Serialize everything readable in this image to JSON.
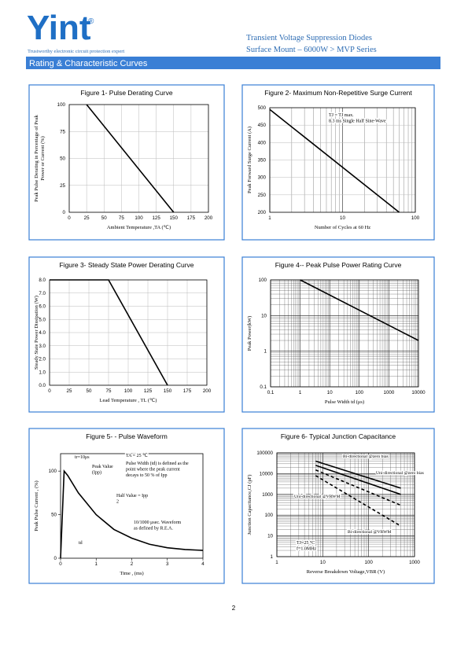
{
  "header": {
    "logo": "Yint",
    "registered": "®",
    "tagline": "Trustworthy electronic circuit protection expert",
    "title": "Transient Voltage Suppression Diodes",
    "subtitle": "Surface Mount – 6000W > MVP Series"
  },
  "section_title": "Rating & Characteristic Curves",
  "page_number": 2,
  "chart_data": [
    {
      "type": "line",
      "title": "Figure 1- Pulse Derating Curve",
      "x_label": "Ambient Temperature ,TA (℃)",
      "y_label": [
        "Peak Pulse Derating in Percentage of Peak",
        "Power or Current (%)"
      ],
      "x": [
        25,
        150
      ],
      "values": [
        100,
        0
      ],
      "color": "#000000",
      "xlim": [
        0,
        200
      ],
      "xticks": [
        0,
        25,
        50,
        75,
        100,
        125,
        150,
        175,
        200
      ],
      "ylim": [
        0,
        100
      ],
      "yticks": [
        0,
        25,
        50,
        75,
        100
      ],
      "grid": true
    },
    {
      "type": "line",
      "title": "Figure 2- Maximum Non-Repetitive Surge Current",
      "x_label": "Number of Cycles at 60 Hz",
      "y_label": [
        "Peak Forward Surge Current (A)"
      ],
      "annotations": [
        [
          "TJ = TJ max.",
          "8.3 ms Single Half Sine-Wave"
        ]
      ],
      "x": [
        1,
        60
      ],
      "values": [
        495,
        200
      ],
      "color": "#000000",
      "x_log": true,
      "xlim": [
        1,
        100
      ],
      "xticks": [
        1,
        10,
        100
      ],
      "ylim": [
        200,
        500
      ],
      "yticks": [
        200,
        250,
        300,
        350,
        400,
        450,
        500
      ],
      "grid": true
    },
    {
      "type": "line",
      "title": "Figure 3- Steady State Power Derating Curve",
      "x_label": "Lead Temperature , TL (℃)",
      "y_label": [
        "Steady State Power Dissipation (W)"
      ],
      "x": [
        0,
        75,
        150
      ],
      "values": [
        8,
        8,
        0
      ],
      "color": "#000000",
      "xlim": [
        0,
        200
      ],
      "xticks": [
        0,
        25,
        50,
        75,
        100,
        125,
        150,
        175,
        200
      ],
      "ylim": [
        0,
        8
      ],
      "yticks": [
        {
          "value": 0,
          "label": "0.0"
        },
        {
          "value": 1,
          "label": "1.0"
        },
        {
          "value": 2,
          "label": "2.0"
        },
        {
          "value": 3,
          "label": "3.0"
        },
        {
          "value": 4,
          "label": "4.0"
        },
        {
          "value": 5,
          "label": "5.0"
        },
        {
          "value": 6,
          "label": "6.0"
        },
        {
          "value": 7,
          "label": "7.0"
        },
        {
          "value": 8,
          "label": "8.0"
        }
      ],
      "grid": true
    },
    {
      "type": "line",
      "title": "Figure 4-- Peak Pulse Power Rating Curve",
      "x_label": "Pulse Width td (μs)",
      "y_label": [
        "Peak Power(kW)"
      ],
      "x": [
        1,
        10000
      ],
      "values": [
        100,
        2
      ],
      "color": "#000000",
      "x_log": true,
      "y_log": true,
      "xlim": [
        0.1,
        10000
      ],
      "xticks": [
        0.1,
        1,
        10,
        100,
        1000,
        10000
      ],
      "ylim": [
        0.1,
        100
      ],
      "yticks": [
        0.1,
        1,
        10,
        100
      ],
      "grid": true
    },
    {
      "type": "line",
      "title": "Figure 5- - Pulse Waveform",
      "x_label": "Time , (ms)",
      "y_label": [
        "Peak Pulse Current , (%)"
      ],
      "annotations": [
        [
          "tr=10μs"
        ],
        [
          "TA = 25 ℃"
        ],
        [
          "Pulse Width (td) is defined as the",
          "point where the peak current",
          "decays to 50 % of Ipp"
        ],
        [
          "Peak Value",
          "(Ipp)"
        ],
        [
          "Half Value = Ipp",
          "2"
        ],
        [
          "10/1000 μsec. Waveform",
          "as defined by R.E.A."
        ],
        [
          "td"
        ]
      ],
      "x": [
        0,
        0.1,
        0.2,
        0.5,
        1,
        1.5,
        2,
        2.5,
        3,
        3.5,
        4
      ],
      "values": [
        0,
        100,
        95,
        75,
        50,
        33,
        23,
        16,
        12,
        10,
        9
      ],
      "color": "#000000",
      "xlim": [
        0,
        4
      ],
      "xticks": [
        0,
        1,
        2,
        3,
        4
      ],
      "ylim": [
        0,
        120
      ],
      "yticks": [
        0,
        50,
        100
      ],
      "grid": false
    },
    {
      "type": "line",
      "title": "Figure 6- Typical Junction Capacitance",
      "x_label": "Reverse Breakdown Voltage,VBR (V)",
      "y_label": [
        "Junction Capacitance,CJ (pF)"
      ],
      "annotations": [
        [
          "TJ=25 °C",
          "f=1.0MHz"
        ]
      ],
      "x_log": true,
      "y_log": true,
      "series": [
        {
          "name": "Bi-directional @zero bias",
          "color": "#000000",
          "x": [
            7,
            500
          ],
          "values": [
            40000,
            2000
          ]
        },
        {
          "name": "Uni-directional @zero bias",
          "color": "#000000",
          "x": [
            7,
            500
          ],
          "values": [
            25000,
            1000
          ]
        },
        {
          "name": "Uni-directional @VRWM",
          "color": "#000000",
          "dashed": true,
          "x": [
            7,
            500
          ],
          "values": [
            15000,
            300
          ]
        },
        {
          "name": "Bi-directional @VRWM",
          "color": "#000000",
          "dashed": true,
          "x": [
            7,
            500
          ],
          "values": [
            8000,
            30
          ]
        }
      ],
      "xlim": [
        1,
        1000
      ],
      "xticks": [
        1,
        10,
        100,
        1000
      ],
      "ylim": [
        1,
        100000
      ],
      "yticks": [
        1,
        10,
        100,
        1000,
        10000,
        100000
      ],
      "grid": true
    }
  ]
}
